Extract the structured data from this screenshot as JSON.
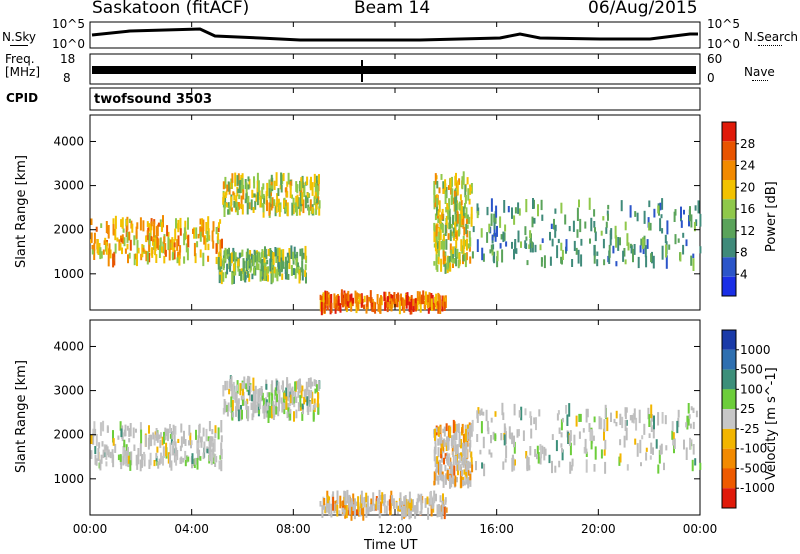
{
  "header": {
    "station": "Saskatoon (fitACF)",
    "beam": "Beam 14",
    "date": "06/Aug/2015"
  },
  "top_panels": {
    "nsky_label": "N.Sky",
    "nsky_ticks": [
      "10^5",
      "10^0"
    ],
    "nsearch_label": "N.Search",
    "nsearch_ticks": [
      "10^5",
      "10^0"
    ],
    "freq_label": "Freq.",
    "freq_unit": "[MHz]",
    "freq_ticks": [
      "18",
      "8"
    ],
    "nave_label": "Nave",
    "nave_ticks": [
      "60",
      "0"
    ],
    "cpid_label": "CPID",
    "cpid_value": "twofsound 3503"
  },
  "colors": {
    "power_scale": [
      "#1a2fe6",
      "#2b55c9",
      "#3f8a7a",
      "#5aa35a",
      "#8fc84a",
      "#f2c200",
      "#f28a00",
      "#e85400",
      "#e01a0a"
    ],
    "velocity_scale": [
      "#1a3aa8",
      "#2e6fb0",
      "#3c8f7a",
      "#6ccd3a",
      "#c7c7c7",
      "#f2b500",
      "#f28a00",
      "#ee5a00",
      "#e01a0a"
    ],
    "ground_scatter": "#bdbdbd"
  },
  "chart_data": [
    {
      "type": "heatmap",
      "name": "power-panel",
      "ylabel": "Slant Range [km]",
      "ylim": [
        180,
        4600
      ],
      "yticks": [
        "4000",
        "3000",
        "2000",
        "1000"
      ],
      "xlim": [
        0,
        24
      ],
      "colorbar": {
        "label": "Power [dB]",
        "ticks": [
          "28",
          "24",
          "20",
          "16",
          "12",
          "8",
          "4"
        ]
      },
      "bands": [
        {
          "t": [
            0,
            5.2
          ],
          "r": [
            1300,
            2200
          ],
          "level": 6
        },
        {
          "t": [
            5.2,
            9
          ],
          "r": [
            2400,
            3200
          ],
          "level": 5
        },
        {
          "t": [
            5,
            8.5
          ],
          "r": [
            900,
            1500
          ],
          "level": 4
        },
        {
          "t": [
            9,
            14
          ],
          "r": [
            200,
            500
          ],
          "level": 7
        },
        {
          "t": [
            13.5,
            15
          ],
          "r": [
            1100,
            3200
          ],
          "level": 5
        },
        {
          "t": [
            15,
            24
          ],
          "r": [
            1200,
            2600
          ],
          "level": 3
        }
      ]
    },
    {
      "type": "heatmap",
      "name": "velocity-panel",
      "ylabel": "Slant Range [km]",
      "ylim": [
        180,
        4600
      ],
      "yticks": [
        "4000",
        "3000",
        "2000",
        "1000"
      ],
      "xlim": [
        0,
        24
      ],
      "xticks": [
        "00:00",
        "04:00",
        "08:00",
        "12:00",
        "16:00",
        "20:00",
        "00:00"
      ],
      "xlabel": "Time UT",
      "colorbar": {
        "label": "Velocity [m s^-1]",
        "ticks": [
          "1000",
          "500",
          "100",
          "25",
          "-25",
          "-100",
          "-500",
          "-1000"
        ]
      },
      "bands": [
        {
          "t": [
            0,
            5.2
          ],
          "r": [
            1300,
            2200
          ],
          "level": 4
        },
        {
          "t": [
            5.2,
            9
          ],
          "r": [
            2400,
            3200
          ],
          "level": 4
        },
        {
          "t": [
            9,
            14
          ],
          "r": [
            200,
            600
          ],
          "level": 6
        },
        {
          "t": [
            13.5,
            15
          ],
          "r": [
            900,
            2200
          ],
          "level": 6
        },
        {
          "t": [
            15,
            24
          ],
          "r": [
            1200,
            2600
          ],
          "level": 4
        }
      ]
    }
  ]
}
